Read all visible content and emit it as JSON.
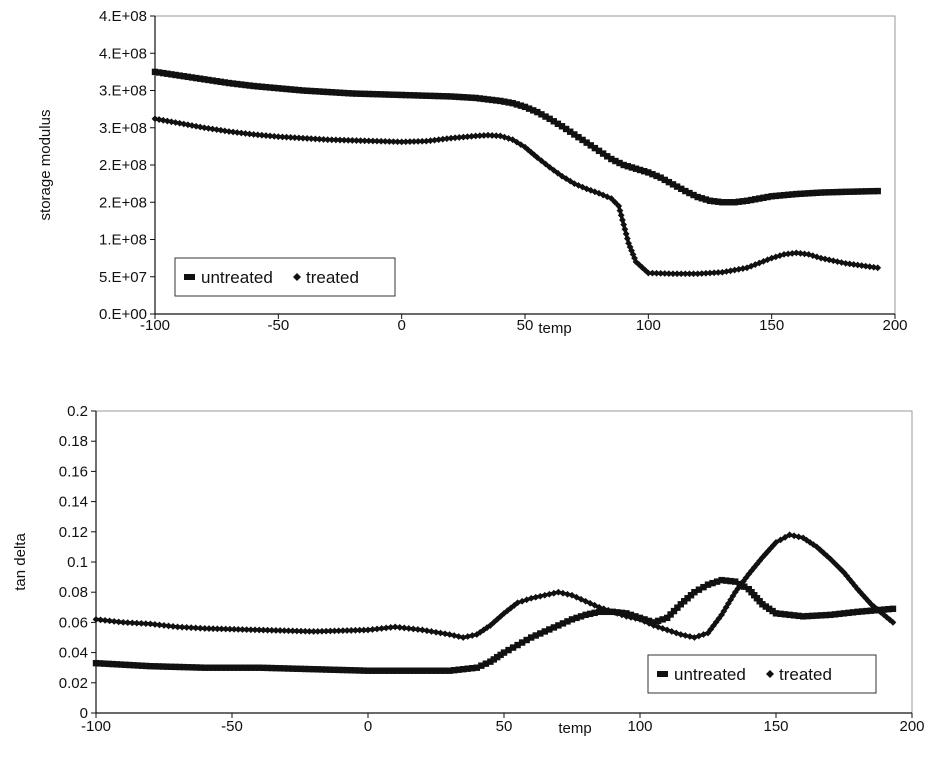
{
  "chart_data": [
    {
      "type": "line",
      "xlabel": "temp",
      "ylabel": "storage modulus",
      "xlim": [
        -100,
        200
      ],
      "ylim": [
        0,
        400000000
      ],
      "x_ticks": [
        -100,
        -50,
        0,
        50,
        100,
        150,
        200
      ],
      "y_ticks": [
        0,
        50000000,
        100000000,
        150000000,
        200000000,
        250000000,
        300000000,
        350000000,
        400000000
      ],
      "x_tick_labels": [
        "-100",
        "-50",
        "0",
        "50",
        "100",
        "150",
        "200"
      ],
      "y_tick_labels": [
        "0.E+00",
        "5.E+07",
        "1.E+08",
        "2.E+08",
        "2.E+08",
        "3.E+08",
        "3.E+08",
        "4.E+08",
        "4.E+08"
      ],
      "legend": {
        "placement": "bottom-left",
        "entries": [
          "untreated",
          "treated"
        ]
      },
      "grid": false,
      "series": [
        {
          "name": "untreated",
          "marker": "square",
          "x": [
            -100,
            -90,
            -80,
            -70,
            -60,
            -50,
            -40,
            -30,
            -20,
            -10,
            0,
            10,
            20,
            30,
            40,
            45,
            50,
            55,
            60,
            65,
            70,
            75,
            80,
            85,
            90,
            95,
            100,
            105,
            110,
            115,
            120,
            125,
            130,
            135,
            140,
            145,
            150,
            160,
            170,
            180,
            193
          ],
          "y": [
            325000000,
            320000000,
            315000000,
            310000000,
            306000000,
            303000000,
            300000000,
            298000000,
            296000000,
            295000000,
            294000000,
            293000000,
            292000000,
            290000000,
            286000000,
            283000000,
            278000000,
            271000000,
            262000000,
            252000000,
            241000000,
            230000000,
            219000000,
            208000000,
            200000000,
            195000000,
            190000000,
            183000000,
            174000000,
            165000000,
            157000000,
            152000000,
            150000000,
            150000000,
            152000000,
            155000000,
            158000000,
            161000000,
            163000000,
            164000000,
            165000000
          ]
        },
        {
          "name": "treated",
          "marker": "diamond",
          "x": [
            -100,
            -90,
            -80,
            -70,
            -60,
            -50,
            -40,
            -30,
            -20,
            -10,
            0,
            10,
            20,
            30,
            35,
            40,
            45,
            50,
            55,
            60,
            65,
            70,
            75,
            80,
            85,
            88,
            90,
            92,
            95,
            100,
            110,
            120,
            130,
            140,
            150,
            155,
            160,
            165,
            170,
            180,
            193
          ],
          "y": [
            262000000,
            256000000,
            250000000,
            245000000,
            241000000,
            238000000,
            236000000,
            234000000,
            233000000,
            232000000,
            231000000,
            232000000,
            236000000,
            239000000,
            240000000,
            239000000,
            234000000,
            224000000,
            210000000,
            197000000,
            185000000,
            175000000,
            168000000,
            162000000,
            155000000,
            145000000,
            120000000,
            95000000,
            70000000,
            55000000,
            54000000,
            54000000,
            56000000,
            62000000,
            75000000,
            80000000,
            82000000,
            80000000,
            75000000,
            68000000,
            62000000
          ]
        }
      ]
    },
    {
      "type": "line",
      "xlabel": "temp",
      "ylabel": "tan delta",
      "xlim": [
        -100,
        200
      ],
      "ylim": [
        0,
        0.2
      ],
      "x_ticks": [
        -100,
        -50,
        0,
        50,
        100,
        150,
        200
      ],
      "y_ticks": [
        0,
        0.02,
        0.04,
        0.06,
        0.08,
        0.1,
        0.12,
        0.14,
        0.16,
        0.18,
        0.2
      ],
      "x_tick_labels": [
        "-100",
        "-50",
        "0",
        "50",
        "100",
        "150",
        "200"
      ],
      "y_tick_labels": [
        "0",
        "0.02",
        "0.04",
        "0.06",
        "0.08",
        "0.1",
        "0.12",
        "0.14",
        "0.16",
        "0.18",
        "0.2"
      ],
      "legend": {
        "placement": "bottom-right",
        "entries": [
          "untreated",
          "treated"
        ]
      },
      "grid": false,
      "series": [
        {
          "name": "untreated",
          "marker": "square",
          "x": [
            -100,
            -80,
            -60,
            -40,
            -20,
            0,
            20,
            30,
            40,
            45,
            50,
            55,
            60,
            65,
            70,
            75,
            80,
            85,
            90,
            95,
            100,
            105,
            110,
            115,
            120,
            125,
            130,
            135,
            140,
            145,
            150,
            160,
            170,
            180,
            193
          ],
          "y": [
            0.033,
            0.031,
            0.03,
            0.03,
            0.029,
            0.028,
            0.028,
            0.028,
            0.03,
            0.034,
            0.04,
            0.045,
            0.05,
            0.054,
            0.058,
            0.062,
            0.065,
            0.067,
            0.067,
            0.066,
            0.063,
            0.06,
            0.063,
            0.072,
            0.08,
            0.085,
            0.088,
            0.087,
            0.082,
            0.072,
            0.066,
            0.064,
            0.065,
            0.067,
            0.069
          ]
        },
        {
          "name": "treated",
          "marker": "diamond",
          "x": [
            -100,
            -90,
            -80,
            -70,
            -60,
            -40,
            -20,
            0,
            10,
            20,
            30,
            35,
            40,
            45,
            50,
            55,
            60,
            65,
            70,
            75,
            80,
            85,
            90,
            95,
            100,
            105,
            110,
            115,
            120,
            125,
            130,
            135,
            140,
            145,
            150,
            155,
            160,
            165,
            170,
            175,
            180,
            185,
            193
          ],
          "y": [
            0.062,
            0.06,
            0.059,
            0.057,
            0.056,
            0.055,
            0.054,
            0.055,
            0.057,
            0.055,
            0.052,
            0.05,
            0.052,
            0.058,
            0.066,
            0.073,
            0.076,
            0.078,
            0.08,
            0.078,
            0.074,
            0.07,
            0.067,
            0.064,
            0.062,
            0.058,
            0.055,
            0.052,
            0.05,
            0.053,
            0.065,
            0.08,
            0.092,
            0.103,
            0.113,
            0.118,
            0.116,
            0.11,
            0.102,
            0.093,
            0.082,
            0.072,
            0.06
          ]
        }
      ]
    }
  ]
}
